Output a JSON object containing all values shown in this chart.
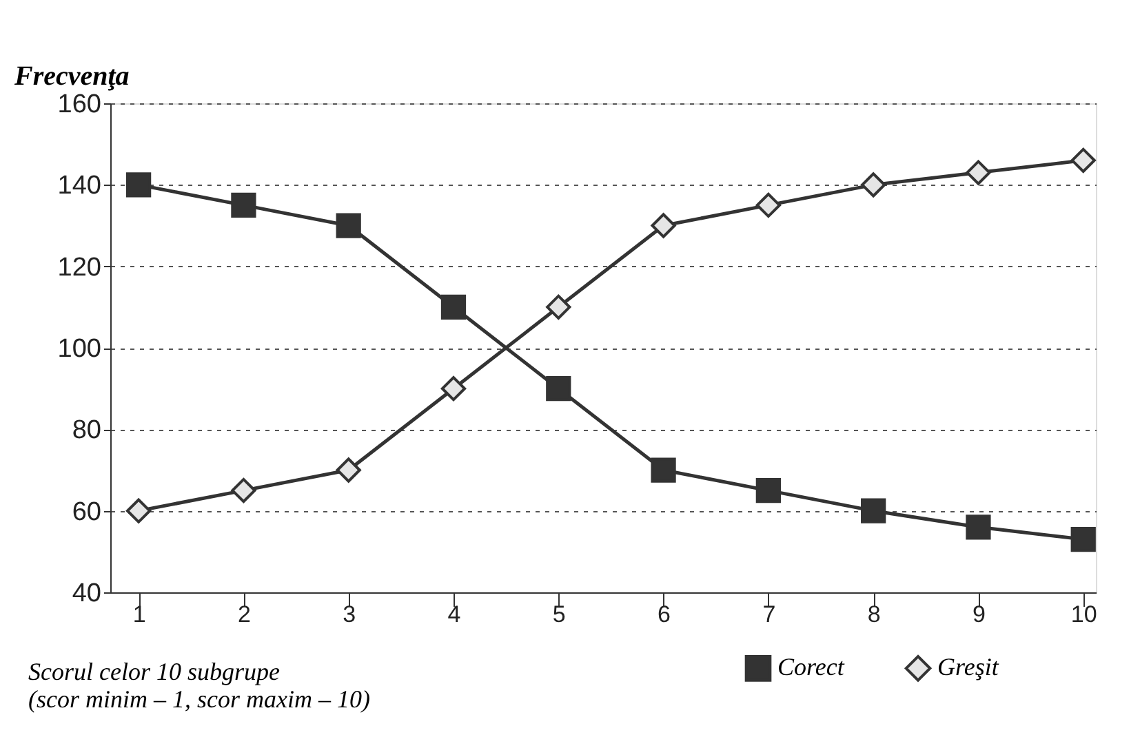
{
  "chart_data": {
    "type": "line",
    "ylabel": "Frecvenţa",
    "xlabel": "Scorul celor 10 subgrupe\n(scor minim – 1, scor maxim – 10)",
    "categories": [
      "1",
      "2",
      "3",
      "4",
      "5",
      "6",
      "7",
      "8",
      "9",
      "10"
    ],
    "series": [
      {
        "name": "Corect",
        "color": "#333333",
        "marker": "square",
        "values": [
          140,
          135,
          130,
          110,
          90,
          70,
          65,
          60,
          56,
          53
        ]
      },
      {
        "name": "Greşit",
        "color": "#333333",
        "marker": "diamond",
        "values": [
          60,
          65,
          70,
          90,
          110,
          130,
          135,
          140,
          143,
          146
        ]
      }
    ],
    "ylim": [
      40,
      160
    ],
    "yticks": [
      40,
      60,
      80,
      100,
      120,
      140,
      160
    ],
    "grid": "y",
    "legend": "bottom right",
    "line_style": "solid"
  }
}
